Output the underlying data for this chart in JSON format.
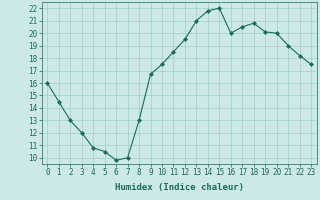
{
  "xlabel": "Humidex (Indice chaleur)",
  "ylabel": "",
  "x": [
    0,
    1,
    2,
    3,
    4,
    5,
    6,
    7,
    8,
    9,
    10,
    11,
    12,
    13,
    14,
    15,
    16,
    17,
    18,
    19,
    20,
    21,
    22,
    23
  ],
  "y": [
    16.0,
    14.5,
    13.0,
    12.0,
    10.8,
    10.5,
    9.8,
    10.0,
    13.0,
    16.7,
    17.5,
    18.5,
    19.5,
    21.0,
    21.8,
    22.0,
    20.0,
    20.5,
    20.8,
    20.1,
    20.0,
    19.0,
    18.2,
    17.5
  ],
  "line_color": "#1a6b5a",
  "marker": "D",
  "marker_size": 2,
  "bg_color": "#cce9e8",
  "grid_color": "#9dcfcc",
  "ylim": [
    9.5,
    22.5
  ],
  "yticks": [
    10,
    11,
    12,
    13,
    14,
    15,
    16,
    17,
    18,
    19,
    20,
    21,
    22
  ],
  "xticks": [
    0,
    1,
    2,
    3,
    4,
    5,
    6,
    7,
    8,
    9,
    10,
    11,
    12,
    13,
    14,
    15,
    16,
    17,
    18,
    19,
    20,
    21,
    22,
    23
  ],
  "label_fontsize": 6.5,
  "tick_fontsize": 5.5
}
